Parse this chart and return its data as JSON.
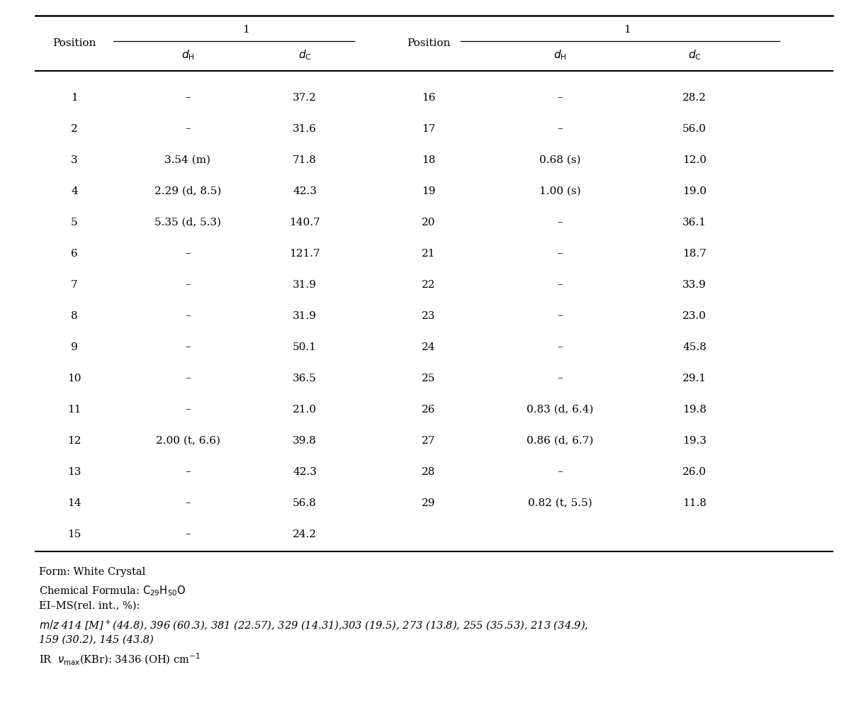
{
  "left_data": [
    [
      "1",
      "–",
      "37.2"
    ],
    [
      "2",
      "–",
      "31.6"
    ],
    [
      "3",
      "3.54 (m)",
      "71.8"
    ],
    [
      "4",
      "2.29 (d, 8.5)",
      "42.3"
    ],
    [
      "5",
      "5.35 (d, 5.3)",
      "140.7"
    ],
    [
      "6",
      "–",
      "121.7"
    ],
    [
      "7",
      "–",
      "31.9"
    ],
    [
      "8",
      "–",
      "31.9"
    ],
    [
      "9",
      "–",
      "50.1"
    ],
    [
      "10",
      "–",
      "36.5"
    ],
    [
      "11",
      "–",
      "21.0"
    ],
    [
      "12",
      "2.00 (t, 6.6)",
      "39.8"
    ],
    [
      "13",
      "–",
      "42.3"
    ],
    [
      "14",
      "–",
      "56.8"
    ],
    [
      "15",
      "–",
      "24.2"
    ]
  ],
  "right_data": [
    [
      "16",
      "–",
      "28.2"
    ],
    [
      "17",
      "–",
      "56.0"
    ],
    [
      "18",
      "0.68 (s)",
      "12.0"
    ],
    [
      "19",
      "1.00 (s)",
      "19.0"
    ],
    [
      "20",
      "–",
      "36.1"
    ],
    [
      "21",
      "–",
      "18.7"
    ],
    [
      "22",
      "–",
      "33.9"
    ],
    [
      "23",
      "–",
      "23.0"
    ],
    [
      "24",
      "–",
      "45.8"
    ],
    [
      "25",
      "–",
      "29.1"
    ],
    [
      "26",
      "0.83 (d, 6.4)",
      "19.8"
    ],
    [
      "27",
      "0.86 (d, 6.7)",
      "19.3"
    ],
    [
      "28",
      "–",
      "26.0"
    ],
    [
      "29",
      "0.82 (t, 5.5)",
      "11.8"
    ],
    [
      "",
      "",
      ""
    ]
  ],
  "bg_color": "#ffffff",
  "text_color": "#000000",
  "font_size": 11.0,
  "footer_font_size": 10.5
}
